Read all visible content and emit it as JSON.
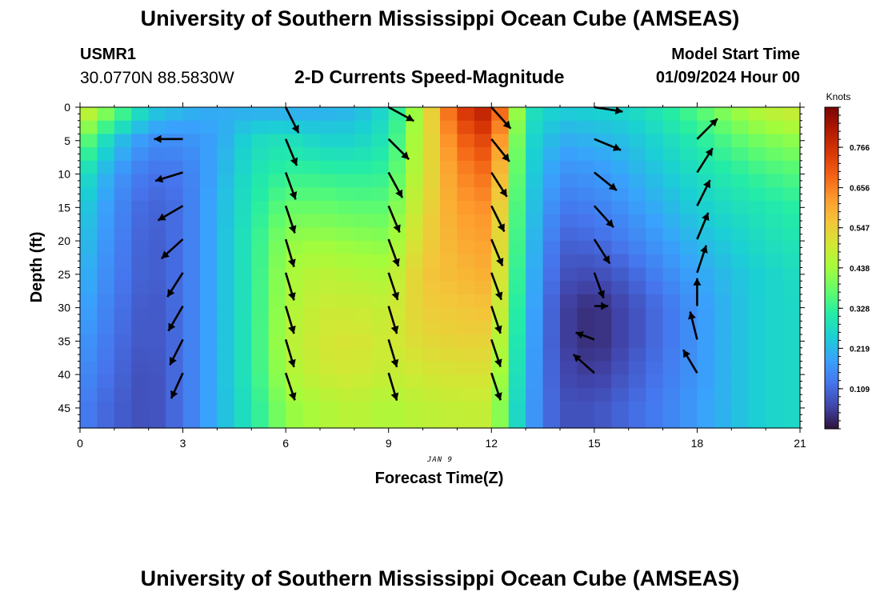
{
  "header": {
    "title": "University of Southern Mississippi Ocean Cube (AMSEAS)",
    "station_id": "USMR1",
    "station_coords": "30.0770N  88.5830W",
    "subtitle": "2-D Currents Speed-Magnitude",
    "start_label": "Model Start Time",
    "start_value": "01/09/2024 Hour 00"
  },
  "footer": {
    "title": "University of Southern Mississippi Ocean Cube (AMSEAS)"
  },
  "chart_data": {
    "type": "heatmap",
    "title": "2-D Currents Speed-Magnitude",
    "xlabel": "Forecast Time(Z)",
    "ylabel": "Depth (ft)",
    "date_label": "JAN 9",
    "xlim": [
      0,
      21
    ],
    "ylim": [
      0,
      48
    ],
    "x_ticks": [
      0,
      3,
      6,
      9,
      12,
      15,
      18,
      21
    ],
    "y_ticks": [
      0,
      5,
      10,
      15,
      20,
      25,
      30,
      35,
      40,
      45
    ],
    "colorbar": {
      "label": "Knots",
      "min": 0.0,
      "max": 0.875,
      "ticks": [
        "0.766",
        "0.656",
        "0.547",
        "0.438",
        "0.328",
        "0.219",
        "0.109"
      ],
      "tick_values": [
        0.766,
        0.656,
        0.547,
        0.438,
        0.328,
        0.219,
        0.109
      ]
    },
    "speed_profile": [
      {
        "hour": 0,
        "speed": [
          0.52,
          0.4,
          0.3,
          0.26,
          0.24,
          0.22,
          0.2,
          0.18,
          0.16,
          0.14
        ]
      },
      {
        "hour": 1,
        "speed": [
          0.4,
          0.24,
          0.18,
          0.16,
          0.15,
          0.14,
          0.13,
          0.12,
          0.11,
          0.1
        ]
      },
      {
        "hour": 2,
        "speed": [
          0.26,
          0.16,
          0.12,
          0.1,
          0.09,
          0.09,
          0.08,
          0.08,
          0.07,
          0.07
        ]
      },
      {
        "hour": 3,
        "speed": [
          0.22,
          0.16,
          0.13,
          0.12,
          0.12,
          0.12,
          0.12,
          0.12,
          0.12,
          0.12
        ]
      },
      {
        "hour": 4,
        "speed": [
          0.2,
          0.19,
          0.2,
          0.21,
          0.21,
          0.21,
          0.21,
          0.21,
          0.21,
          0.21
        ]
      },
      {
        "hour": 5,
        "speed": [
          0.2,
          0.27,
          0.29,
          0.3,
          0.31,
          0.31,
          0.31,
          0.31,
          0.31,
          0.3
        ]
      },
      {
        "hour": 6,
        "speed": [
          0.19,
          0.29,
          0.33,
          0.38,
          0.42,
          0.44,
          0.45,
          0.46,
          0.45,
          0.42
        ]
      },
      {
        "hour": 7,
        "speed": [
          0.2,
          0.26,
          0.33,
          0.38,
          0.43,
          0.47,
          0.49,
          0.5,
          0.49,
          0.45
        ]
      },
      {
        "hour": 8,
        "speed": [
          0.21,
          0.26,
          0.32,
          0.37,
          0.42,
          0.46,
          0.49,
          0.51,
          0.5,
          0.47
        ]
      },
      {
        "hour": 9,
        "speed": [
          0.27,
          0.3,
          0.33,
          0.37,
          0.41,
          0.45,
          0.48,
          0.49,
          0.48,
          0.45
        ]
      },
      {
        "hour": 10,
        "speed": [
          0.48,
          0.49,
          0.5,
          0.52,
          0.54,
          0.56,
          0.55,
          0.53,
          0.5,
          0.47
        ]
      },
      {
        "hour": 11,
        "speed": [
          0.74,
          0.68,
          0.64,
          0.62,
          0.6,
          0.58,
          0.56,
          0.54,
          0.51,
          0.48
        ]
      },
      {
        "hour": 12,
        "speed": [
          0.82,
          0.74,
          0.68,
          0.64,
          0.62,
          0.6,
          0.57,
          0.54,
          0.51,
          0.48
        ]
      },
      {
        "hour": 13,
        "speed": [
          0.3,
          0.28,
          0.27,
          0.26,
          0.25,
          0.24,
          0.23,
          0.22,
          0.21,
          0.2
        ]
      },
      {
        "hour": 14,
        "speed": [
          0.25,
          0.2,
          0.16,
          0.13,
          0.1,
          0.08,
          0.06,
          0.06,
          0.07,
          0.08
        ]
      },
      {
        "hour": 15,
        "speed": [
          0.26,
          0.21,
          0.17,
          0.14,
          0.11,
          0.07,
          0.03,
          0.03,
          0.05,
          0.08
        ]
      },
      {
        "hour": 16,
        "speed": [
          0.27,
          0.23,
          0.2,
          0.17,
          0.14,
          0.1,
          0.07,
          0.07,
          0.09,
          0.11
        ]
      },
      {
        "hour": 17,
        "speed": [
          0.31,
          0.27,
          0.24,
          0.21,
          0.18,
          0.15,
          0.12,
          0.12,
          0.13,
          0.14
        ]
      },
      {
        "hour": 18,
        "speed": [
          0.36,
          0.31,
          0.28,
          0.25,
          0.22,
          0.19,
          0.17,
          0.17,
          0.17,
          0.18
        ]
      },
      {
        "hour": 19,
        "speed": [
          0.43,
          0.36,
          0.31,
          0.28,
          0.25,
          0.23,
          0.22,
          0.22,
          0.22,
          0.22
        ]
      },
      {
        "hour": 20,
        "speed": [
          0.48,
          0.4,
          0.34,
          0.3,
          0.28,
          0.26,
          0.26,
          0.26,
          0.26,
          0.26
        ]
      },
      {
        "hour": 21,
        "speed": [
          0.5,
          0.42,
          0.36,
          0.32,
          0.3,
          0.28,
          0.27,
          0.27,
          0.27,
          0.27
        ]
      }
    ],
    "vector_depths": [
      0,
      5,
      10,
      15,
      20,
      25,
      30,
      35,
      40,
      45
    ],
    "vectors": [
      {
        "hour": 3,
        "arrows": [
          {
            "depth": 5,
            "dx": -0.7,
            "dy": 0.0
          },
          {
            "depth": 10,
            "dx": -0.65,
            "dy": 0.2
          },
          {
            "depth": 15,
            "dx": -0.6,
            "dy": 0.35
          },
          {
            "depth": 20,
            "dx": -0.5,
            "dy": 0.45
          },
          {
            "depth": 25,
            "dx": -0.35,
            "dy": 0.55
          },
          {
            "depth": 30,
            "dx": -0.32,
            "dy": 0.55
          },
          {
            "depth": 35,
            "dx": -0.28,
            "dy": 0.55
          },
          {
            "depth": 40,
            "dx": -0.25,
            "dy": 0.55
          }
        ]
      },
      {
        "hour": 6,
        "arrows": [
          {
            "depth": 0,
            "dx": 0.3,
            "dy": 0.6
          },
          {
            "depth": 5,
            "dx": 0.25,
            "dy": 0.6
          },
          {
            "depth": 10,
            "dx": 0.22,
            "dy": 0.6
          },
          {
            "depth": 15,
            "dx": 0.2,
            "dy": 0.6
          },
          {
            "depth": 20,
            "dx": 0.18,
            "dy": 0.6
          },
          {
            "depth": 25,
            "dx": 0.18,
            "dy": 0.6
          },
          {
            "depth": 30,
            "dx": 0.18,
            "dy": 0.6
          },
          {
            "depth": 35,
            "dx": 0.18,
            "dy": 0.6
          },
          {
            "depth": 40,
            "dx": 0.2,
            "dy": 0.6
          }
        ]
      },
      {
        "hour": 9,
        "arrows": [
          {
            "depth": 0,
            "dx": 0.55,
            "dy": 0.3
          },
          {
            "depth": 5,
            "dx": 0.45,
            "dy": 0.45
          },
          {
            "depth": 10,
            "dx": 0.3,
            "dy": 0.55
          },
          {
            "depth": 15,
            "dx": 0.25,
            "dy": 0.6
          },
          {
            "depth": 20,
            "dx": 0.22,
            "dy": 0.6
          },
          {
            "depth": 25,
            "dx": 0.2,
            "dy": 0.6
          },
          {
            "depth": 30,
            "dx": 0.18,
            "dy": 0.6
          },
          {
            "depth": 35,
            "dx": 0.18,
            "dy": 0.6
          },
          {
            "depth": 40,
            "dx": 0.18,
            "dy": 0.6
          }
        ]
      },
      {
        "hour": 12,
        "arrows": [
          {
            "depth": 0,
            "dx": 0.45,
            "dy": 0.5
          },
          {
            "depth": 5,
            "dx": 0.4,
            "dy": 0.5
          },
          {
            "depth": 10,
            "dx": 0.35,
            "dy": 0.55
          },
          {
            "depth": 15,
            "dx": 0.3,
            "dy": 0.6
          },
          {
            "depth": 20,
            "dx": 0.25,
            "dy": 0.6
          },
          {
            "depth": 25,
            "dx": 0.22,
            "dy": 0.6
          },
          {
            "depth": 30,
            "dx": 0.2,
            "dy": 0.6
          },
          {
            "depth": 35,
            "dx": 0.2,
            "dy": 0.6
          },
          {
            "depth": 40,
            "dx": 0.2,
            "dy": 0.6
          }
        ]
      },
      {
        "hour": 15,
        "arrows": [
          {
            "depth": 0,
            "dx": 0.65,
            "dy": 0.1
          },
          {
            "depth": 5,
            "dx": 0.6,
            "dy": 0.25
          },
          {
            "depth": 10,
            "dx": 0.5,
            "dy": 0.4
          },
          {
            "depth": 15,
            "dx": 0.45,
            "dy": 0.5
          },
          {
            "depth": 20,
            "dx": 0.35,
            "dy": 0.55
          },
          {
            "depth": 25,
            "dx": 0.2,
            "dy": 0.55
          },
          {
            "depth": 30,
            "dx": 0.3,
            "dy": 0.0
          },
          {
            "depth": 35,
            "dx": -0.4,
            "dy": -0.15
          },
          {
            "depth": 40,
            "dx": -0.45,
            "dy": -0.4
          }
        ]
      },
      {
        "hour": 18,
        "arrows": [
          {
            "depth": 0,
            "dx": 0.0,
            "dy": 0.0
          },
          {
            "depth": 5,
            "dx": 0.45,
            "dy": -0.45
          },
          {
            "depth": 10,
            "dx": 0.35,
            "dy": -0.55
          },
          {
            "depth": 15,
            "dx": 0.3,
            "dy": -0.6
          },
          {
            "depth": 20,
            "dx": 0.25,
            "dy": -0.6
          },
          {
            "depth": 25,
            "dx": 0.2,
            "dy": -0.6
          },
          {
            "depth": 30,
            "dx": 0.0,
            "dy": -0.6
          },
          {
            "depth": 35,
            "dx": -0.15,
            "dy": -0.6
          },
          {
            "depth": 40,
            "dx": -0.3,
            "dy": -0.5
          }
        ]
      }
    ],
    "colors": {
      "text": "#000000",
      "arrow": "#000000",
      "background": "#ffffff",
      "colormap": [
        "#30123b",
        "#4145ab",
        "#4675ed",
        "#39a2fc",
        "#1bcfd4",
        "#24eca6",
        "#61fc6c",
        "#a4fc3b",
        "#d1e834",
        "#f3c63a",
        "#fe9b2d",
        "#f36315",
        "#d93806",
        "#b11901",
        "#7a0402"
      ]
    }
  }
}
